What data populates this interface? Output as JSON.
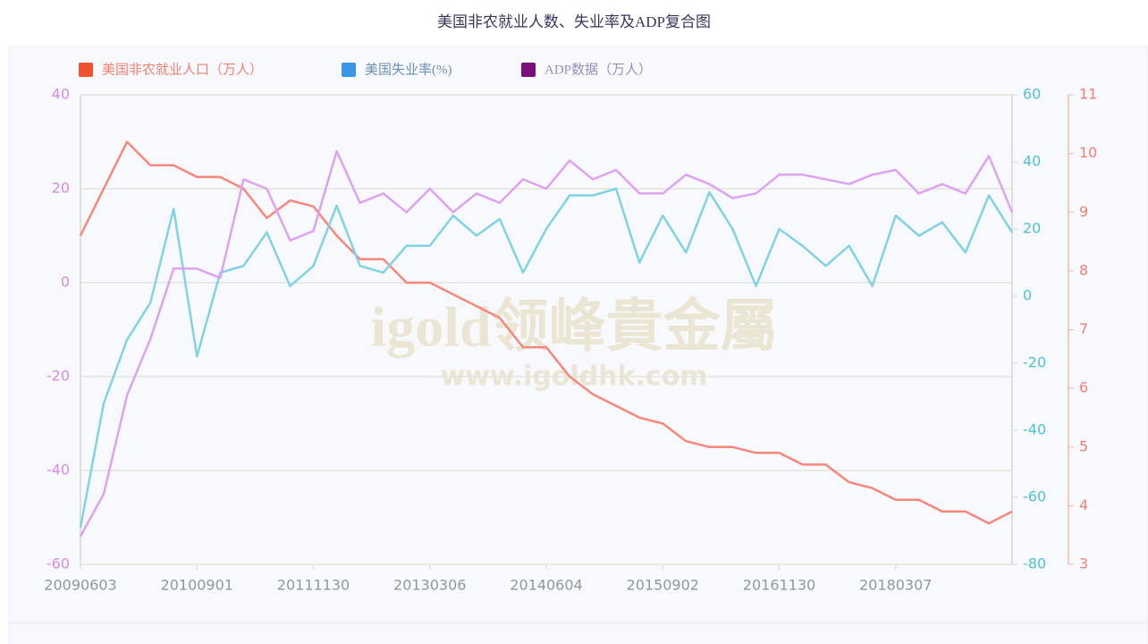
{
  "chart_data": {
    "type": "line",
    "title": "美国非农就业人数、失业率及ADP复合图",
    "watermark": {
      "brand": "igold领峰貴金屬",
      "url": "www.igoldhk.com"
    },
    "categories": [
      "20090603",
      null,
      null,
      null,
      null,
      "20100901",
      null,
      null,
      null,
      null,
      "20111130",
      null,
      null,
      null,
      null,
      "20130306",
      null,
      null,
      null,
      null,
      "20140604",
      null,
      null,
      null,
      null,
      "20150902",
      null,
      null,
      null,
      null,
      "20161130",
      null,
      null,
      null,
      null,
      "20180307",
      null,
      null,
      null,
      null,
      null
    ],
    "ylim": [
      -60,
      40
    ],
    "yticks": [
      -60,
      -40,
      -20,
      0,
      20,
      40
    ],
    "ytick_color": "#d98be0",
    "y2lim": [
      -80,
      60
    ],
    "y2ticks": [
      -80,
      -60,
      -40,
      -20,
      0,
      20,
      40,
      60
    ],
    "y2tick_color": "#4cc3d0",
    "y3lim": [
      3,
      11
    ],
    "y3ticks": [
      3,
      4,
      5,
      6,
      7,
      8,
      9,
      10,
      11
    ],
    "y3tick_color": "#f07f74",
    "grid": true,
    "series": [
      {
        "name": "美国非农就业人口（万人）",
        "legend_color": "#f0522f",
        "color": "#f7877a",
        "axis": "y3",
        "values": [
          8.6,
          9.4,
          10.2,
          9.8,
          9.8,
          9.6,
          9.6,
          9.4,
          8.9,
          9.2,
          9.1,
          8.6,
          8.2,
          8.2,
          7.8,
          7.8,
          7.6,
          7.4,
          7.2,
          6.7,
          6.7,
          6.2,
          5.9,
          5.7,
          5.5,
          5.4,
          5.1,
          5.0,
          5.0,
          4.9,
          4.9,
          4.7,
          4.7,
          4.4,
          4.3,
          4.1,
          4.1,
          3.9,
          3.9,
          3.7,
          3.9
        ]
      },
      {
        "name": "美国失业率(%)",
        "legend_color": "#3c96e8",
        "color": "#7fd3e3",
        "axis": "y2",
        "values": [
          -69,
          -32,
          -13,
          -2,
          26,
          -18,
          7,
          9,
          19,
          3,
          9,
          27,
          9,
          7,
          15,
          15,
          24,
          18,
          23,
          7,
          20,
          30,
          30,
          32,
          10,
          24,
          13,
          31,
          20,
          3,
          20,
          15,
          9,
          15,
          3,
          24,
          18,
          22,
          13,
          30,
          19
        ]
      },
      {
        "name": "ADP数据（万人）",
        "legend_color": "#7b0f7b",
        "color": "#dea2f2",
        "axis": "y",
        "values": [
          -54,
          -45,
          -24,
          -12,
          3,
          3,
          1,
          22,
          20,
          9,
          11,
          28,
          17,
          19,
          15,
          20,
          15,
          19,
          17,
          22,
          20,
          26,
          22,
          24,
          19,
          19,
          23,
          21,
          18,
          19,
          23,
          23,
          22,
          21,
          23,
          24,
          19,
          21,
          19,
          27,
          15
        ]
      }
    ]
  }
}
